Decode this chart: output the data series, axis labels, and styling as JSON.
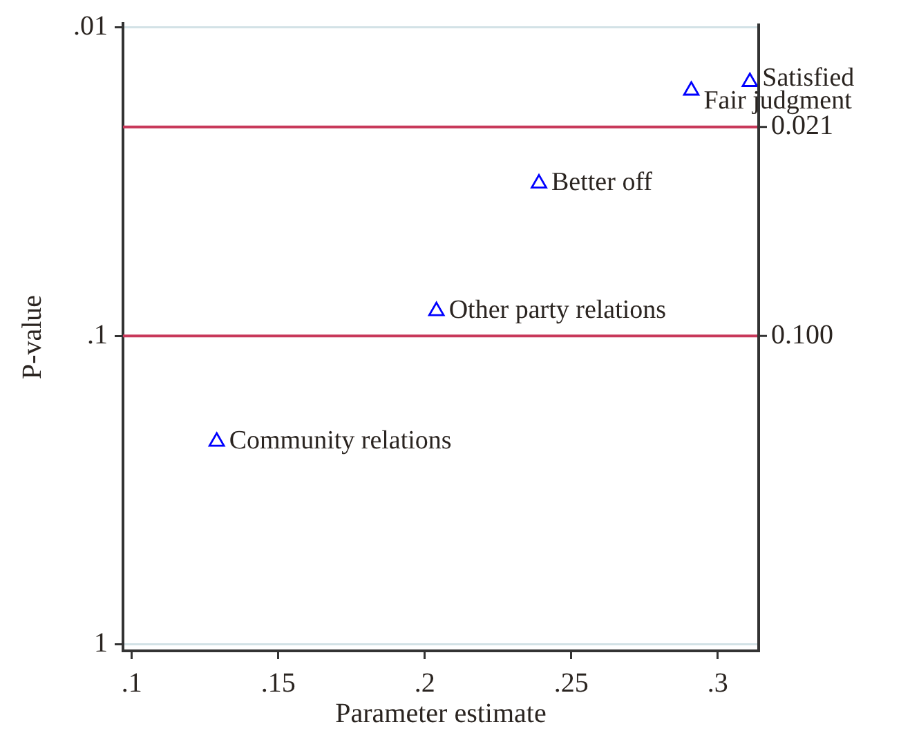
{
  "chart_data": {
    "type": "scatter",
    "xlabel": "Parameter estimate",
    "ylabel": "P-value",
    "x": [
      0.129,
      0.204,
      0.239,
      0.291,
      0.311
    ],
    "values": [
      0.22,
      0.083,
      0.032,
      0.016,
      0.015
    ],
    "color": "#0000ff",
    "marker": "triangle",
    "log": "y",
    "xlim": [
      0.097,
      0.314
    ],
    "ylim": [
      1.05,
      0.0097
    ],
    "xticks": [
      {
        "value": 0.1,
        "label": ".1"
      },
      {
        "value": 0.15,
        "label": ".15"
      },
      {
        "value": 0.2,
        "label": ".2"
      },
      {
        "value": 0.25,
        "label": ".25"
      },
      {
        "value": 0.3,
        "label": ".3"
      }
    ],
    "yticks": [
      {
        "value": 0.01,
        "label": ".01"
      },
      {
        "value": 0.1,
        "label": ".1"
      },
      1
    ],
    "grid": "y",
    "legend": false,
    "ref_lines": [
      {
        "axis": "y",
        "value": 0.021,
        "label": "0.021",
        "color": "#c8385a"
      },
      {
        "axis": "y",
        "value": 0.1,
        "label": "0.100",
        "color": "#c8385a"
      }
    ],
    "annotations": [
      {
        "text": "Community relations",
        "x": 0.129,
        "y": 0.22
      },
      {
        "text": "Other party relations",
        "x": 0.204,
        "y": 0.083
      },
      {
        "text": "Better off",
        "x": 0.239,
        "y": 0.032
      },
      {
        "text": "Fair judgment",
        "x": 0.291,
        "y": 0.016
      },
      {
        "text": "Satisfied",
        "x": 0.311,
        "y": 0.015
      }
    ]
  }
}
